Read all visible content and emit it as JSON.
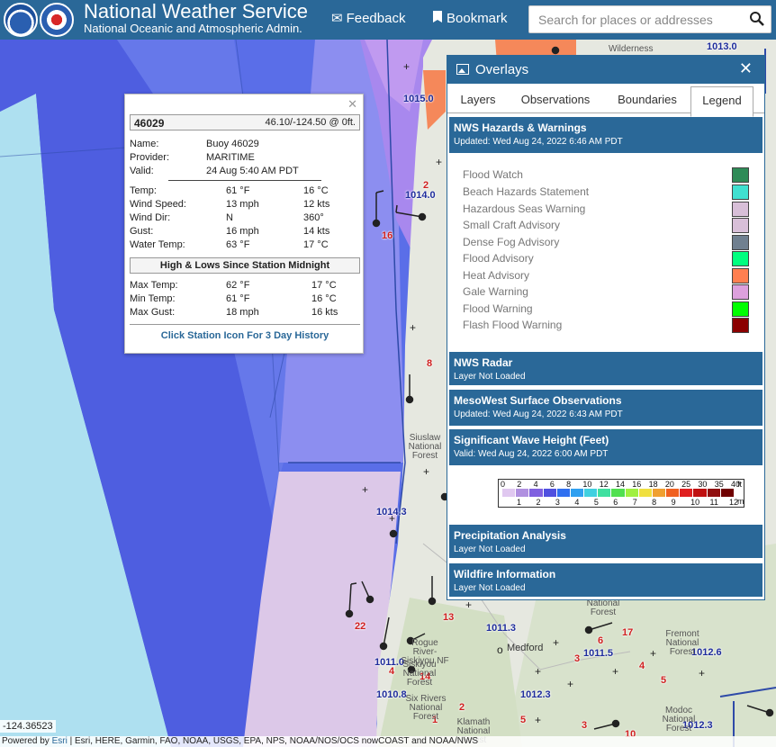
{
  "header": {
    "title": "National Weather Service",
    "subtitle": "National Oceanic and Atmospheric Admin.",
    "logo_noaa": "noaa-logo",
    "logo_nws": "nws-logo",
    "feedback_label": "Feedback",
    "bookmark_label": "Bookmark",
    "search_placeholder": "Search for places or addresses"
  },
  "popup": {
    "station_id": "46029",
    "location": "46.10/-124.50 @ 0ft.",
    "name_label": "Name:",
    "name_value": "Buoy 46029",
    "provider_label": "Provider:",
    "provider_value": "MARITIME",
    "valid_label": "Valid:",
    "valid_value": "24 Aug 5:40 AM PDT",
    "rows": [
      {
        "label": "Temp:",
        "v1": "61 °F",
        "v2": "16 °C"
      },
      {
        "label": "Wind Speed:",
        "v1": "13 mph",
        "v2": "12 kts"
      },
      {
        "label": "Wind Dir:",
        "v1": "N",
        "v2": "360°"
      },
      {
        "label": "Gust:",
        "v1": "16 mph",
        "v2": "14 kts"
      },
      {
        "label": "Water Temp:",
        "v1": "63 °F",
        "v2": "17 °C"
      }
    ],
    "hilo_title": "High & Lows Since Station Midnight",
    "hilo_rows": [
      {
        "label": "Max Temp:",
        "v1": "62 °F",
        "v2": "17 °C"
      },
      {
        "label": "Min Temp:",
        "v1": "61 °F",
        "v2": "16 °C"
      },
      {
        "label": "Max Gust:",
        "v1": "18 mph",
        "v2": "16 kts"
      }
    ],
    "history_link": "Click Station Icon For 3 Day History"
  },
  "panel": {
    "title": "Overlays",
    "tabs": [
      "Layers",
      "Observations",
      "Boundaries",
      "Legend"
    ],
    "active_tab": "Legend",
    "hazards_title": "NWS Hazards & Warnings",
    "hazards_updated": "Updated: Wed Aug 24, 2022 6:46 AM PDT",
    "legend": [
      {
        "label": "Flood Watch",
        "color": "#2e8b57"
      },
      {
        "label": "Beach Hazards Statement",
        "color": "#40e0d0"
      },
      {
        "label": "Hazardous Seas Warning",
        "color": "#d8bfd8"
      },
      {
        "label": "Small Craft Advisory",
        "color": "#d8bfd8"
      },
      {
        "label": "Dense Fog Advisory",
        "color": "#708090"
      },
      {
        "label": "Flood Advisory",
        "color": "#00ff7f"
      },
      {
        "label": "Heat Advisory",
        "color": "#ff7f50"
      },
      {
        "label": "Gale Warning",
        "color": "#dda0dd"
      },
      {
        "label": "Flood Warning",
        "color": "#00ff00"
      },
      {
        "label": "Flash Flood Warning",
        "color": "#8b0000"
      }
    ],
    "sections": [
      {
        "title": "NWS Radar",
        "sub": "Layer Not Loaded"
      },
      {
        "title": "MesoWest Surface Observations",
        "sub": "Updated: Wed Aug 24, 2022 6:43 AM PDT"
      },
      {
        "title": "Significant Wave Height (Feet)",
        "sub": "Valid: Wed Aug 24, 2022 6:00 AM PDT"
      },
      {
        "title": "Precipitation Analysis",
        "sub": "Layer Not Loaded"
      },
      {
        "title": "Wildfire Information",
        "sub": "Layer Not Loaded"
      }
    ],
    "wave_scale": {
      "ft_ticks": [
        "0",
        "2",
        "4",
        "6",
        "8",
        "10",
        "12",
        "14",
        "16",
        "18",
        "20",
        "25",
        "30",
        "35",
        "40"
      ],
      "m_ticks": [
        "1",
        "2",
        "3",
        "4",
        "5",
        "6",
        "7",
        "8",
        "9",
        "10",
        "11",
        "12"
      ],
      "ft_unit": "ft",
      "m_unit": "m",
      "colors": [
        "#e0c8f0",
        "#b090e0",
        "#8060e0",
        "#5050e0",
        "#3070f0",
        "#30a0f0",
        "#40d0e0",
        "#40e0a0",
        "#50e050",
        "#a0f040",
        "#f0e040",
        "#f0a030",
        "#f06020",
        "#e02020",
        "#c01010",
        "#901010",
        "#700000"
      ]
    }
  },
  "map": {
    "pressure_labels": [
      "1013.0",
      "1015.0",
      "1014.0",
      "1014.3",
      "1011.3",
      "1011.5",
      "1012.6",
      "1011.0",
      "1010.8",
      "1012.3",
      "1012.3"
    ],
    "temp_labels": [
      "16",
      "2",
      "8",
      "13",
      "22",
      "17",
      "6",
      "3",
      "4",
      "5",
      "2",
      "1",
      "5",
      "3",
      "10",
      "14",
      "4"
    ],
    "places": [
      "Siuslaw National Forest",
      "Rogue River-Siskiyou NF",
      "Siskiyou National Forest",
      "Medford",
      "Fremont National Forest",
      "Six Rivers National Forest",
      "Klamath National Forest",
      "Modoc National Forest",
      "Wilderness",
      "National Forest"
    ],
    "coord_readout": "-124.36523",
    "attribution_prefix": "Powered by ",
    "attribution_esri": "Esri",
    "attribution_rest": " | Esri, HERE, Garmin, FAO, NOAA, USGS, EPA, NPS, NOAA/NOS/OCS nowCOAST and NOAA/NWS"
  }
}
